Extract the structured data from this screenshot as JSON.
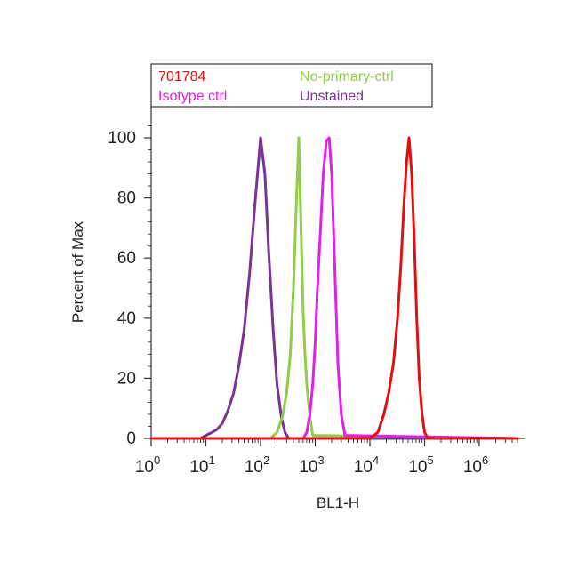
{
  "chart_data": {
    "type": "line",
    "xlabel": "BL1-H",
    "ylabel": "Percent of Max",
    "x_scale": "log",
    "xlim": [
      1,
      5000000
    ],
    "ylim": [
      0,
      105
    ],
    "y_ticks": [
      "0",
      "20",
      "40",
      "60",
      "80",
      "100"
    ],
    "x_ticks": [
      {
        "base": "10",
        "exp": "0"
      },
      {
        "base": "10",
        "exp": "1"
      },
      {
        "base": "10",
        "exp": "2"
      },
      {
        "base": "10",
        "exp": "3"
      },
      {
        "base": "10",
        "exp": "4"
      },
      {
        "base": "10",
        "exp": "5"
      },
      {
        "base": "10",
        "exp": "6"
      }
    ],
    "grid": false,
    "legend_position": "top",
    "series": [
      {
        "name": "Unstained",
        "color": "#7b3294",
        "x": [
          1,
          8,
          10,
          13,
          16,
          20,
          25,
          32,
          40,
          50,
          63,
          79,
          100,
          120,
          140,
          170,
          200,
          240,
          280,
          330,
          5000000
        ],
        "y": [
          0,
          0,
          1,
          2,
          3,
          5,
          9,
          15,
          24,
          36,
          55,
          78,
          100,
          88,
          63,
          36,
          18,
          7,
          2,
          0,
          0
        ]
      },
      {
        "name": "No-primary-ctrl",
        "color": "#8fcc4a",
        "x": [
          1,
          150,
          200,
          250,
          300,
          350,
          400,
          450,
          500,
          550,
          600,
          650,
          700,
          800,
          900,
          5000000
        ],
        "y": [
          0,
          0,
          2,
          7,
          15,
          28,
          50,
          78,
          100,
          70,
          42,
          28,
          18,
          7,
          1,
          0
        ]
      },
      {
        "name": "Isotype ctrl",
        "color": "#e020e8",
        "x": [
          1,
          600,
          700,
          800,
          900,
          1000,
          1100,
          1250,
          1400,
          1600,
          1800,
          2000,
          2300,
          2600,
          3000,
          3500,
          5000000
        ],
        "y": [
          0,
          0,
          2,
          8,
          18,
          32,
          50,
          70,
          88,
          99,
          100,
          88,
          55,
          25,
          8,
          1,
          0
        ]
      },
      {
        "name": "701784",
        "color": "#dd1111",
        "x": [
          1,
          10000,
          14000,
          18000,
          22000,
          27000,
          32000,
          37000,
          42000,
          47000,
          52000,
          58000,
          65000,
          72000,
          80000,
          90000,
          100000,
          115000,
          5000000
        ],
        "y": [
          0,
          0,
          2,
          8,
          15,
          25,
          40,
          58,
          78,
          92,
          100,
          88,
          65,
          40,
          20,
          8,
          2,
          0,
          0
        ]
      }
    ]
  }
}
